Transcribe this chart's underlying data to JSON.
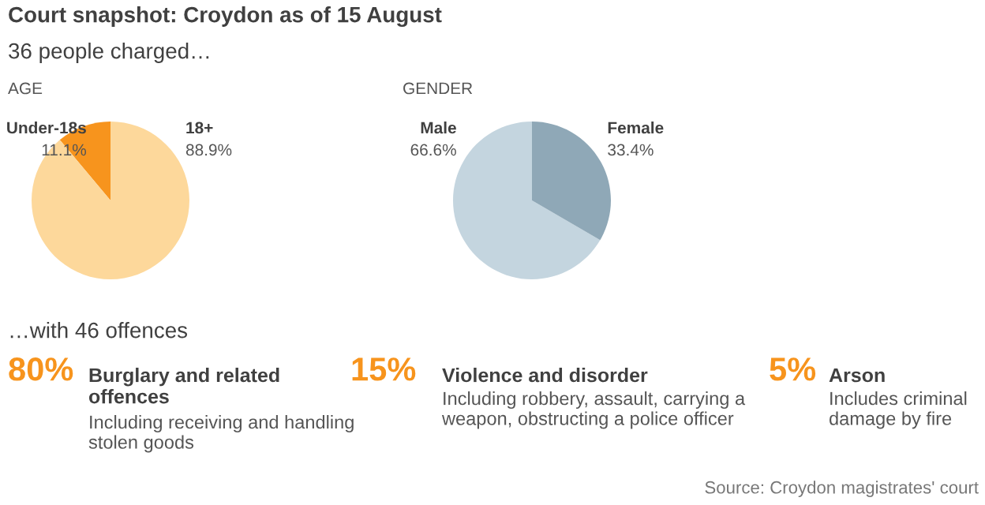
{
  "chart_data": [
    {
      "type": "other",
      "title": "Court snapshot: Croydon as of 15 August",
      "subtitle": "36 people charged…"
    },
    {
      "type": "pie",
      "title": "AGE",
      "categories": [
        "Under-18s",
        "18+"
      ],
      "values": [
        11.1,
        88.9
      ],
      "value_labels": [
        "11.1%",
        "88.9%"
      ],
      "colors": [
        "#f7941d",
        "#fdd89b"
      ]
    },
    {
      "type": "pie",
      "title": "GENDER",
      "categories": [
        "Male",
        "Female"
      ],
      "values": [
        66.6,
        33.4
      ],
      "value_labels": [
        "66.6%",
        "33.4%"
      ],
      "colors": [
        "#c4d5df",
        "#8fa8b7"
      ]
    },
    {
      "type": "other",
      "title": "…with 46 offences",
      "categories": [
        "Burglary and related offences",
        "Violence and disorder",
        "Arson"
      ],
      "value_labels": [
        "80%",
        "15%",
        "5%"
      ],
      "color": "#f7941d",
      "annotations": [
        "Including receiving and handling stolen goods",
        "Including robbery, assault, carrying a weapon, obstructing a police officer",
        "Includes criminal damage by fire",
        "Source: Croydon magistrates' court"
      ]
    }
  ]
}
